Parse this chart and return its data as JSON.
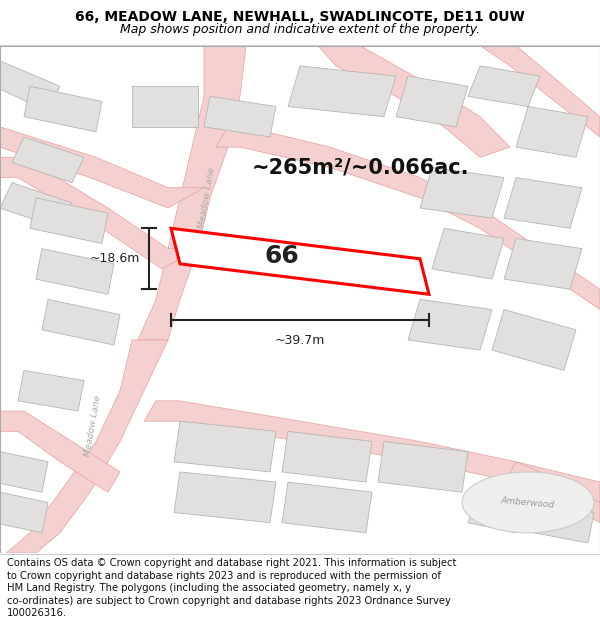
{
  "title_line1": "66, MEADOW LANE, NEWHALL, SWADLINCOTE, DE11 0UW",
  "title_line2": "Map shows position and indicative extent of the property.",
  "footer_lines": [
    "Contains OS data © Crown copyright and database right 2021. This information is subject",
    "to Crown copyright and database rights 2023 and is reproduced with the permission of",
    "HM Land Registry. The polygons (including the associated geometry, namely x, y",
    "co-ordinates) are subject to Crown copyright and database rights 2023 Ordnance Survey",
    "100026316."
  ],
  "area_label": "~265m²/~0.066ac.",
  "width_label": "~39.7m",
  "height_label": "~18.6m",
  "plot_number": "66",
  "map_bg": "#f7f6f4",
  "road_fc": "#f5d0d0",
  "road_ec": "#e8a0a0",
  "building_fc": "#e2e0de",
  "building_ec": "#b8b6b4",
  "highlight_ec": "#ff0000",
  "highlight_fc": "#ffffff",
  "street_color": "#aaaaaa",
  "amberwood_fc": "#f0efee",
  "amberwood_ec": "#cccccc",
  "dim_color": "#222222",
  "title_fs": 10,
  "subtitle_fs": 9,
  "footer_fs": 7.2,
  "area_fs": 15,
  "plot_fs": 18,
  "dim_fs": 9,
  "street_fs": 6.5
}
